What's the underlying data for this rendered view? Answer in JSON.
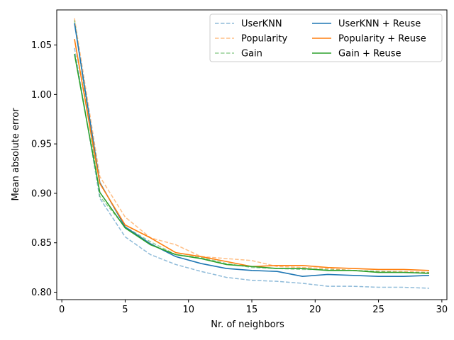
{
  "chart_data": {
    "type": "line",
    "title": "",
    "xlabel": "Nr. of neighbors",
    "ylabel": "Mean absolute error",
    "xlim": [
      -0.4,
      30.4
    ],
    "ylim": [
      0.7925,
      1.0855
    ],
    "xticks": [
      0,
      5,
      10,
      15,
      20,
      25,
      30
    ],
    "yticks": [
      0.8,
      0.85,
      0.9,
      0.95,
      1.0,
      1.05
    ],
    "ytick_labels": [
      "0.80",
      "0.85",
      "0.90",
      "0.95",
      "1.00",
      "1.05"
    ],
    "grid": false,
    "legend": {
      "placement": "top-right",
      "columns": 2
    },
    "x": [
      1,
      3,
      5,
      7,
      9,
      11,
      13,
      15,
      17,
      19,
      21,
      23,
      25,
      27,
      29
    ],
    "series": [
      {
        "name": "UserKNN",
        "style": "dashed",
        "color": "#1f77b4",
        "values": [
          1.047,
          0.895,
          0.856,
          0.838,
          0.828,
          0.821,
          0.815,
          0.812,
          0.811,
          0.809,
          0.806,
          0.806,
          0.805,
          0.805,
          0.804
        ]
      },
      {
        "name": "Popularity",
        "style": "dashed",
        "color": "#ff7f0e",
        "values": [
          1.077,
          0.917,
          0.876,
          0.855,
          0.848,
          0.836,
          0.834,
          0.832,
          0.826,
          0.825,
          0.824,
          0.822,
          0.821,
          0.821,
          0.82
        ]
      },
      {
        "name": "Gain",
        "style": "dashed",
        "color": "#2ca02c",
        "values": [
          1.075,
          0.897,
          0.866,
          0.851,
          0.838,
          0.835,
          0.829,
          0.825,
          0.824,
          0.823,
          0.823,
          0.822,
          0.821,
          0.82,
          0.82
        ]
      },
      {
        "name": "UserKNN + Reuse",
        "style": "solid",
        "color": "#1f77b4",
        "values": [
          1.072,
          0.911,
          0.866,
          0.849,
          0.836,
          0.829,
          0.824,
          0.822,
          0.821,
          0.816,
          0.818,
          0.817,
          0.816,
          0.816,
          0.817
        ]
      },
      {
        "name": "Popularity + Reuse",
        "style": "solid",
        "color": "#ff7f0e",
        "values": [
          1.056,
          0.91,
          0.868,
          0.855,
          0.84,
          0.836,
          0.831,
          0.826,
          0.827,
          0.827,
          0.825,
          0.824,
          0.823,
          0.823,
          0.822
        ]
      },
      {
        "name": "Gain + Reuse",
        "style": "solid",
        "color": "#2ca02c",
        "values": [
          1.041,
          0.901,
          0.865,
          0.848,
          0.838,
          0.834,
          0.828,
          0.826,
          0.824,
          0.824,
          0.822,
          0.822,
          0.82,
          0.82,
          0.819
        ]
      }
    ]
  }
}
